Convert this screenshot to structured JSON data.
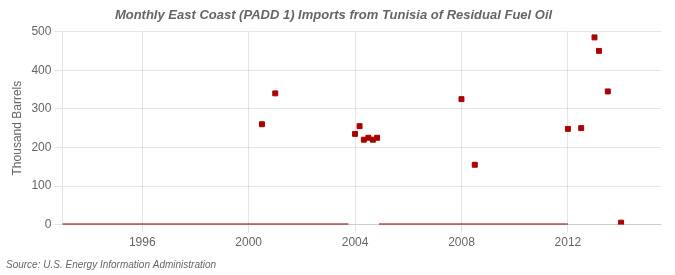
{
  "chart_data": {
    "type": "scatter",
    "title": "Monthly East Coast (PADD 1) Imports from Tunisia of Residual Fuel Oil",
    "ylabel": "Thousand Barrels",
    "annotations": [
      "Source: U.S. Energy Information Administration"
    ],
    "xlim": [
      1993.0,
      2015.5
    ],
    "xticks": [
      1996,
      2000,
      2004,
      2008,
      2012
    ],
    "ylim": [
      0,
      500
    ],
    "yticks": [
      0,
      100,
      200,
      300,
      400,
      500
    ],
    "grid": true,
    "series": [
      {
        "type": "line",
        "line_style": "solid",
        "color": "#8b0000",
        "x": [
          1993.0,
          2003.75
        ],
        "values": [
          0,
          0
        ]
      },
      {
        "type": "line",
        "line_style": "solid",
        "color": "#8b0000",
        "x": [
          2004.9,
          2012.0
        ],
        "values": [
          0,
          0
        ]
      },
      {
        "type": "scatter",
        "marker": "square",
        "color": "#aa0000",
        "x": [
          2000.5,
          2001.0,
          2004.0,
          2004.17,
          2004.33,
          2004.5,
          2004.67,
          2004.83,
          2008.0,
          2008.5,
          2012.0,
          2012.5,
          2013.0,
          2013.17,
          2013.5,
          2014.0
        ],
        "values": [
          260,
          340,
          235,
          255,
          220,
          225,
          220,
          225,
          325,
          155,
          248,
          250,
          485,
          450,
          345,
          5
        ]
      }
    ]
  }
}
